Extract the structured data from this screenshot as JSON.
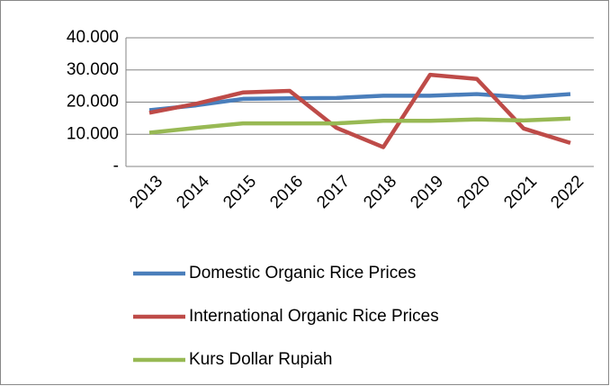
{
  "chart_data": {
    "type": "line",
    "categories": [
      "2013",
      "2014",
      "2015",
      "2016",
      "2017",
      "2018",
      "2019",
      "2020",
      "2021",
      "2022"
    ],
    "series": [
      {
        "name": "Domestic Organic Rice Prices",
        "color": "#4a7ebb",
        "values": [
          17500,
          19000,
          21000,
          21200,
          21300,
          22000,
          22000,
          22500,
          21500,
          22500
        ]
      },
      {
        "name": "International Organic Rice Prices",
        "color": "#be4b48",
        "values": [
          16700,
          19500,
          23000,
          23500,
          12000,
          6000,
          28500,
          27200,
          11800,
          7300
        ]
      },
      {
        "name": "Kurs Dollar Rupiah",
        "color": "#98b954",
        "values": [
          10500,
          12000,
          13400,
          13400,
          13400,
          14200,
          14200,
          14600,
          14300,
          14900
        ]
      }
    ],
    "ylim": [
      0,
      40000
    ],
    "yticks": [
      {
        "value": 0,
        "label": "-"
      },
      {
        "value": 10000,
        "label": "10.000"
      },
      {
        "value": 20000,
        "label": "20.000"
      },
      {
        "value": 30000,
        "label": "30.000"
      },
      {
        "value": 40000,
        "label": "40.000"
      }
    ],
    "grid": true,
    "legend": "bottom"
  }
}
